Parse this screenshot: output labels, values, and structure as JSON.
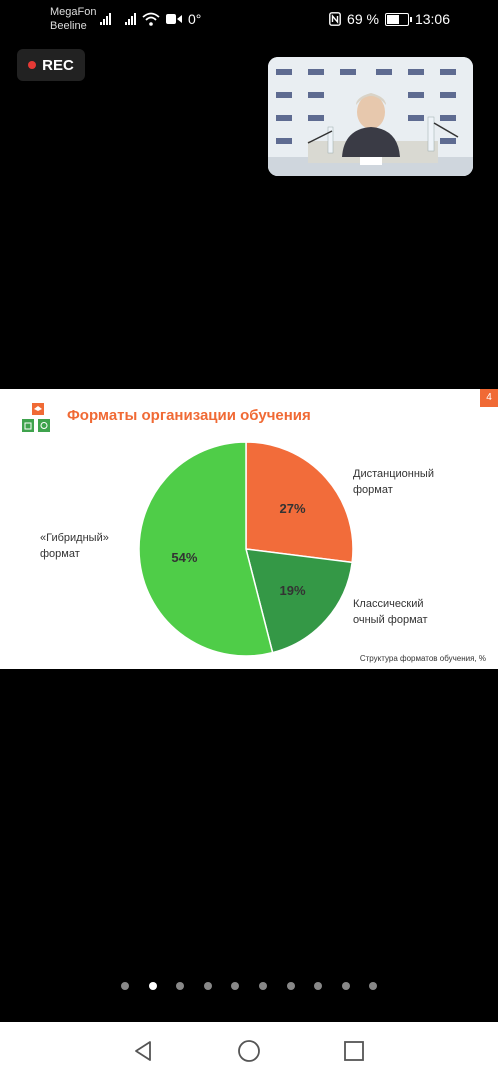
{
  "status_bar": {
    "carrier_1": "MegaFon",
    "carrier_2": "Beeline",
    "temperature": "0°",
    "battery_level": "69 %",
    "battery_fraction": 0.69,
    "time": "13:06"
  },
  "recording": {
    "label": "REC"
  },
  "slide": {
    "title": "Форматы организации обучения",
    "page_number": "4",
    "caption": "Структура форматов обучения, %",
    "labels": {
      "remote": [
        "Дистанционный",
        "формат"
      ],
      "classic": [
        "Классический",
        "очный формат"
      ],
      "hybrid": [
        "«Гибридный»",
        "формат"
      ]
    }
  },
  "chart_data": {
    "type": "pie",
    "categories": [
      "Дистанционный формат",
      "Классический очный формат",
      "«Гибридный» формат"
    ],
    "values": [
      27,
      19,
      54
    ],
    "value_labels": [
      "27%",
      "19%",
      "54%"
    ],
    "colors": [
      "#f26c3a",
      "#349846",
      "#4fcd48"
    ],
    "start": "top, clockwise",
    "legend": "none (labels beside slices)"
  },
  "pager": {
    "count": 10,
    "active_index": 1
  },
  "nav": {
    "back": "back-icon",
    "home": "home-icon",
    "recents": "recents-icon"
  }
}
